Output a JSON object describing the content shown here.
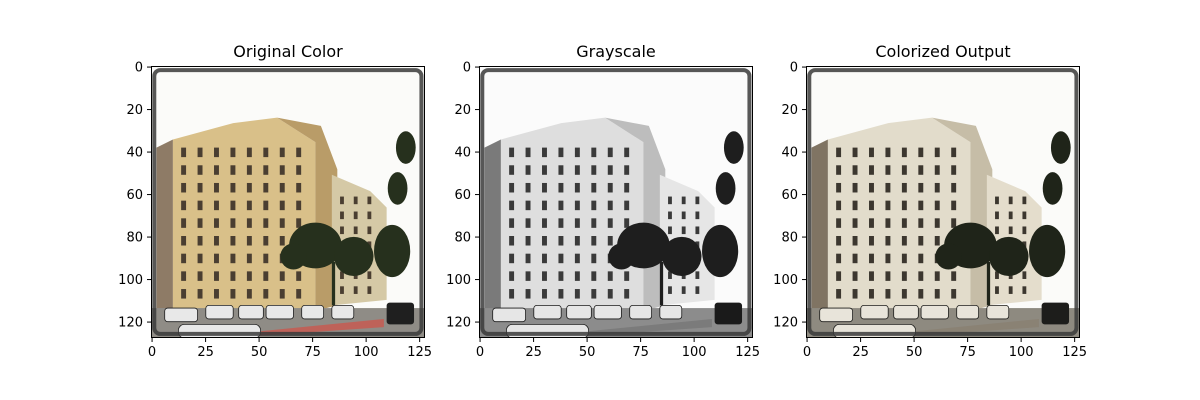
{
  "figure": {
    "panels": [
      {
        "id": "original",
        "title": "Original Color",
        "mode": "color",
        "colors": {
          "sky": "#fbfbf9",
          "building_main": "#d9c089",
          "building_shadow": "#b99c68",
          "building_left": "#8e7b66",
          "building_right": "#d5c9a6",
          "window": "#4a3e31",
          "tree": "#26301d",
          "street": "#8f8c86",
          "curb": "#c9584e",
          "car": "#e8e8e8",
          "car_dark": "#1f1f1f",
          "border": "#3a3a3a"
        }
      },
      {
        "id": "grayscale",
        "title": "Grayscale",
        "mode": "gray",
        "colors": {
          "sky": "#fbfbfb",
          "building_main": "#dedede",
          "building_shadow": "#bdbdbd",
          "building_left": "#7a7a7a",
          "building_right": "#e6e6e6",
          "window": "#3a3a3a",
          "tree": "#1e1e1e",
          "street": "#8c8c8c",
          "curb": "#777777",
          "car": "#e6e6e6",
          "car_dark": "#1a1a1a",
          "border": "#3a3a3a"
        }
      },
      {
        "id": "colorized",
        "title": "Colorized Output",
        "mode": "colorized",
        "colors": {
          "sky": "#fbfbf9",
          "building_main": "#e2dccb",
          "building_shadow": "#c6bda7",
          "building_left": "#807463",
          "building_right": "#e4ddcc",
          "window": "#3c372f",
          "tree": "#1f2419",
          "street": "#8e8a80",
          "curb": "#8a7f70",
          "car": "#e8e4da",
          "car_dark": "#1d1d1b",
          "border": "#3a3a3a"
        }
      }
    ],
    "axes": {
      "x_ticks": [
        0,
        25,
        50,
        75,
        100,
        125
      ],
      "y_ticks": [
        0,
        20,
        40,
        60,
        80,
        100,
        120
      ],
      "xlim": [
        -0.5,
        127.5
      ],
      "ylim": [
        127.5,
        -0.5
      ],
      "y_inverted": true
    }
  }
}
